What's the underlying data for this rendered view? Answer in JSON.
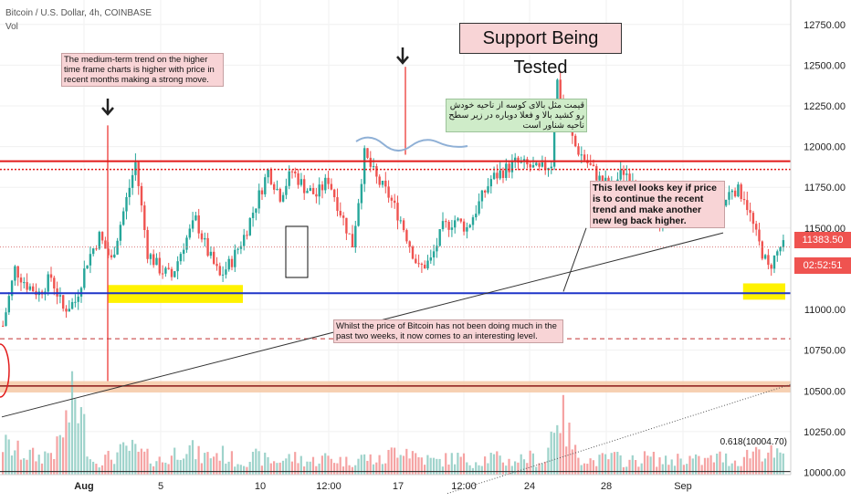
{
  "header": {
    "symbol": "Bitcoin / U.S. Dollar, 4h, COINBASE",
    "volume_label": "Vol"
  },
  "title_box": "Support Being Tested",
  "notes": {
    "trend": "The medium-term trend on the higher time frame charts is higher with price in recent months making a strong move.",
    "persian": "قیمت مثل بالای کوسه از ناحیه خودش رو کشید بالا و فعلا دوباره در زیر سطح ناحیه شناور است",
    "key_level": "This level looks key if price is to continue the recent trend and make another new leg back higher.",
    "interesting": "Whilst the price of Bitcoin has not been doing much in the past two weeks, it now comes to an interesting level."
  },
  "price_tags": {
    "last_price": "11383.50",
    "countdown": "02:52:51"
  },
  "fib_label": "0.618(10004.70)",
  "colors": {
    "up": "#26a69a",
    "down": "#ef5350",
    "resistance": "#e21b1b",
    "support": "#1f35c9",
    "highlight": "#fff200",
    "zone": "#f6c9a6"
  },
  "chart_data": {
    "type": "candlestick",
    "title": "Support Being Tested",
    "xlabel": "",
    "ylabel": "",
    "ylim": [
      9885,
      12900
    ],
    "y_ticks": [
      10000,
      10250,
      10500,
      10750,
      11000,
      11250,
      11500,
      11750,
      12000,
      12250,
      12500,
      12750
    ],
    "x_ticks": [
      "Aug",
      "5",
      "10",
      "12:00",
      "17",
      "12:00",
      "24",
      "28",
      "Sep"
    ],
    "price_series": [
      [
        0,
        10900
      ],
      [
        4,
        11250
      ],
      [
        8,
        11150
      ],
      [
        12,
        11100
      ],
      [
        16,
        11200
      ],
      [
        20,
        11000
      ],
      [
        24,
        11050
      ],
      [
        28,
        11300
      ],
      [
        32,
        11450
      ],
      [
        36,
        11300
      ],
      [
        40,
        11600
      ],
      [
        44,
        11900
      ],
      [
        48,
        11350
      ],
      [
        52,
        11250
      ],
      [
        56,
        11200
      ],
      [
        60,
        11400
      ],
      [
        64,
        11550
      ],
      [
        68,
        11350
      ],
      [
        72,
        11200
      ],
      [
        76,
        11300
      ],
      [
        80,
        11450
      ],
      [
        84,
        11650
      ],
      [
        88,
        11850
      ],
      [
        92,
        11700
      ],
      [
        96,
        11850
      ],
      [
        100,
        11750
      ],
      [
        104,
        11700
      ],
      [
        108,
        11800
      ],
      [
        112,
        11600
      ],
      [
        116,
        11400
      ],
      [
        120,
        11950
      ],
      [
        124,
        11800
      ],
      [
        128,
        11700
      ],
      [
        132,
        11550
      ],
      [
        136,
        11350
      ],
      [
        138,
        11250
      ],
      [
        142,
        11300
      ],
      [
        146,
        11500
      ],
      [
        150,
        11550
      ],
      [
        154,
        11500
      ],
      [
        158,
        11650
      ],
      [
        162,
        11800
      ],
      [
        166,
        11850
      ],
      [
        170,
        11900
      ],
      [
        174,
        11880
      ],
      [
        178,
        11850
      ],
      [
        182,
        11900
      ],
      [
        184,
        12400
      ],
      [
        186,
        12200
      ],
      [
        190,
        12000
      ],
      [
        194,
        11900
      ],
      [
        198,
        11800
      ],
      [
        202,
        11750
      ],
      [
        206,
        11850
      ],
      [
        210,
        11800
      ],
      [
        214,
        11650
      ],
      [
        218,
        11550
      ],
      [
        222,
        11600
      ],
      [
        226,
        11650
      ],
      [
        230,
        11700
      ],
      [
        234,
        11650
      ],
      [
        238,
        11600
      ],
      [
        242,
        11750
      ],
      [
        246,
        11700
      ],
      [
        250,
        11450
      ],
      [
        254,
        11250
      ],
      [
        258,
        11383.5
      ]
    ],
    "volume_series": [
      [
        0,
        0.35
      ],
      [
        6,
        0.25
      ],
      [
        12,
        0.2
      ],
      [
        18,
        0.3
      ],
      [
        24,
        0.9
      ],
      [
        30,
        0.15
      ],
      [
        36,
        0.2
      ],
      [
        42,
        0.3
      ],
      [
        48,
        0.2
      ],
      [
        54,
        0.15
      ],
      [
        60,
        0.35
      ],
      [
        66,
        0.2
      ],
      [
        72,
        0.25
      ],
      [
        78,
        0.15
      ],
      [
        84,
        0.2
      ],
      [
        90,
        0.15
      ],
      [
        96,
        0.2
      ],
      [
        102,
        0.15
      ],
      [
        108,
        0.2
      ],
      [
        114,
        0.15
      ],
      [
        120,
        0.2
      ],
      [
        126,
        0.15
      ],
      [
        132,
        0.35
      ],
      [
        138,
        0.2
      ],
      [
        144,
        0.15
      ],
      [
        150,
        0.2
      ],
      [
        156,
        0.15
      ],
      [
        162,
        0.2
      ],
      [
        168,
        0.15
      ],
      [
        174,
        0.2
      ],
      [
        180,
        0.15
      ],
      [
        184,
        0.8
      ],
      [
        190,
        0.25
      ],
      [
        196,
        0.15
      ],
      [
        202,
        0.2
      ],
      [
        208,
        0.15
      ],
      [
        214,
        0.2
      ],
      [
        220,
        0.15
      ],
      [
        226,
        0.2
      ],
      [
        232,
        0.15
      ],
      [
        238,
        0.2
      ],
      [
        244,
        0.15
      ],
      [
        250,
        0.3
      ],
      [
        254,
        0.25
      ],
      [
        258,
        0.2
      ]
    ],
    "levels": {
      "resistance_upper": 11910,
      "resistance_lower": 11860,
      "last_price": 11383.5,
      "support": 11100,
      "dashed_low": 10820,
      "zone_top": 10560,
      "zone_bottom": 10490,
      "zone_line": 10530,
      "fib_0618": 10004.7
    },
    "highlight_zones": [
      {
        "x_from": 35,
        "x_to": 80,
        "y_low": 11040,
        "y_high": 11150
      },
      {
        "x_from": 246,
        "x_to": 260,
        "y_low": 11060,
        "y_high": 11160
      }
    ],
    "trendlines": [
      {
        "from": [
          0,
          10340
        ],
        "to": [
          260,
          11470
        ]
      },
      {
        "from": [
          125,
          9870
        ],
        "to": [
          320,
          10540
        ]
      }
    ]
  }
}
